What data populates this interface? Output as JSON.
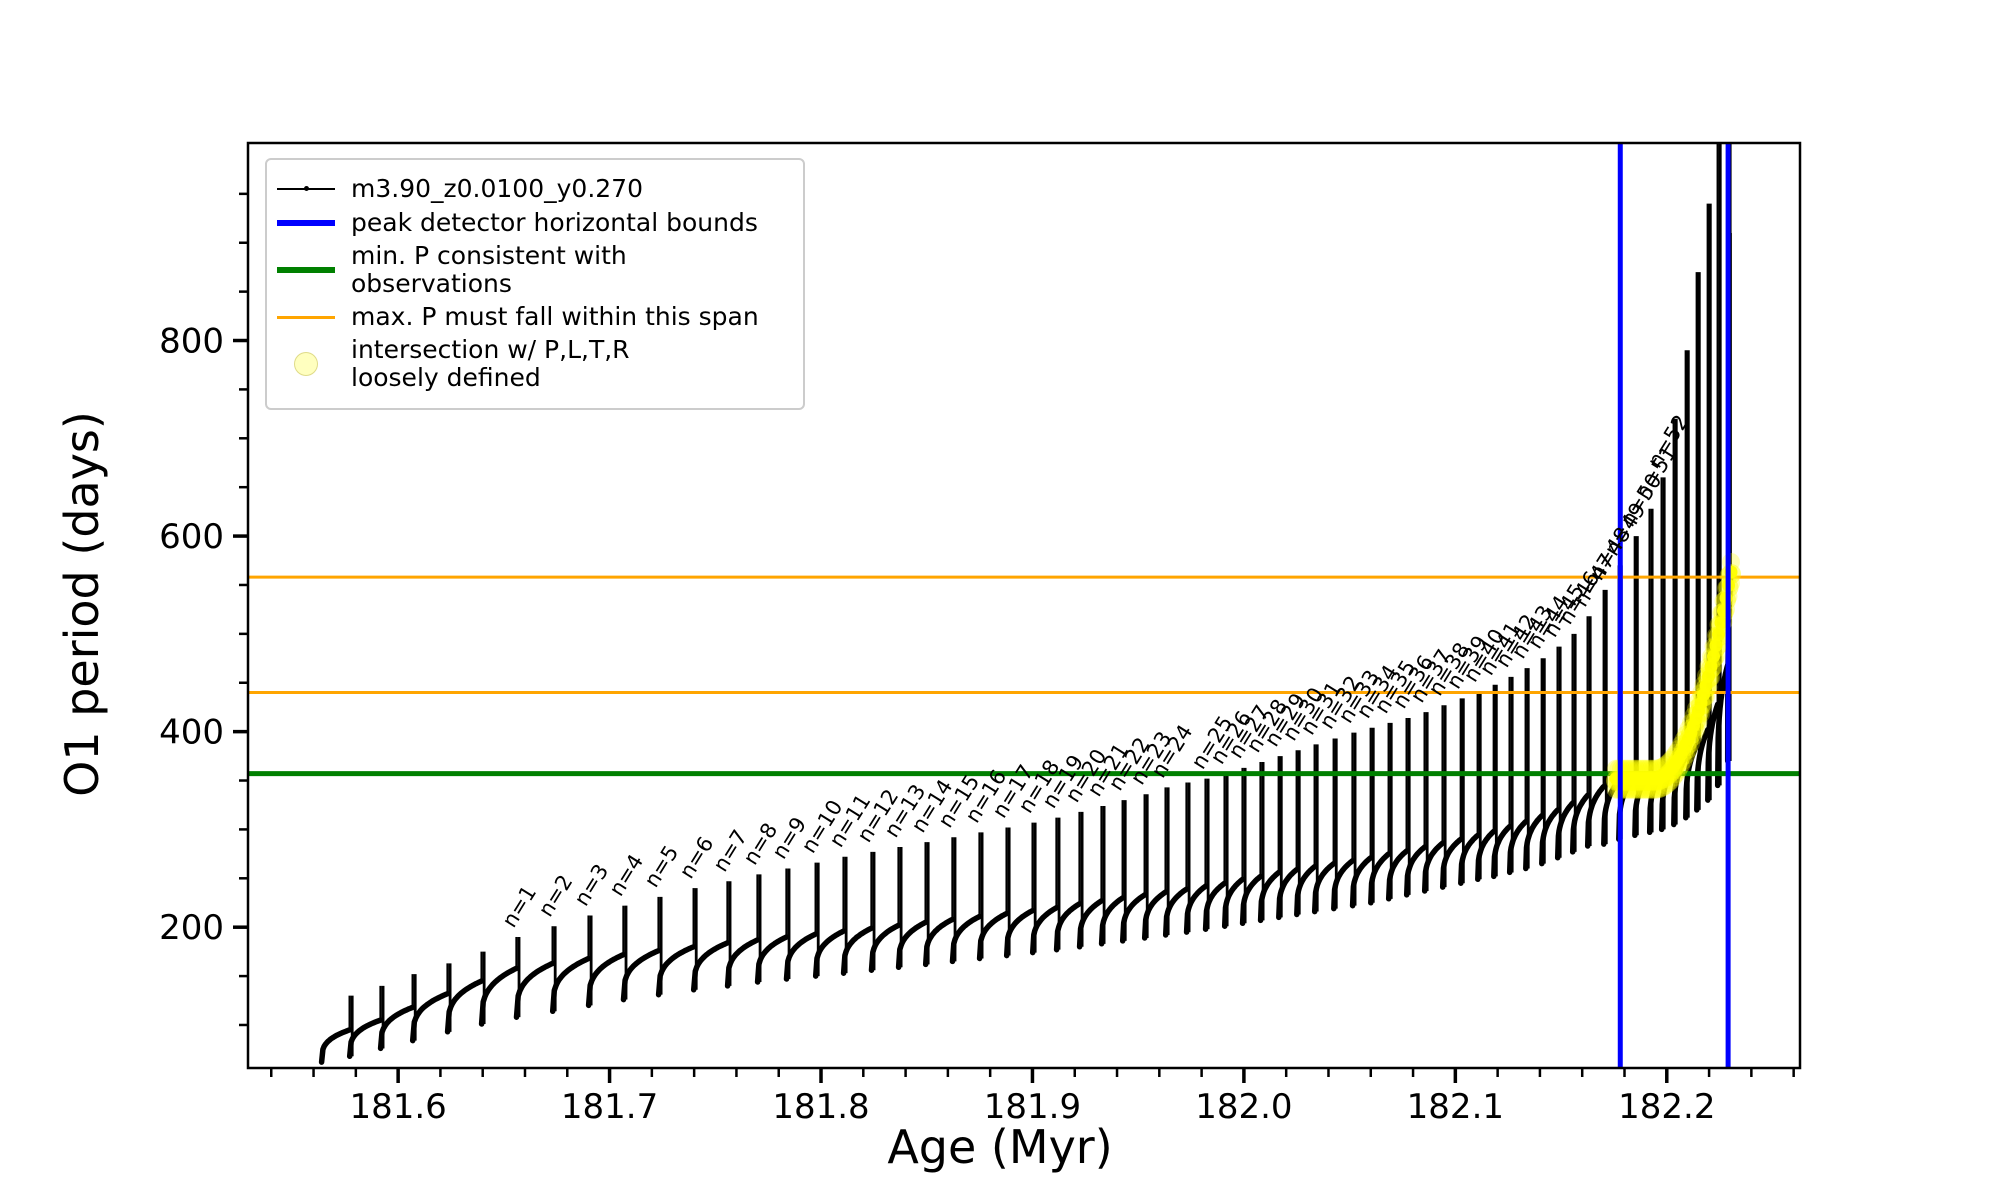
{
  "figure": {
    "xlabel": "Age (Myr)",
    "ylabel": "O1 period (days)",
    "background": "#ffffff",
    "spine_color": "#000000"
  },
  "legend": {
    "entries": [
      {
        "label": "m3.90_z0.0100_y0.270",
        "type": "line-dot",
        "color": "#000000"
      },
      {
        "label": "peak detector horizontal bounds",
        "type": "line",
        "color": "#0000ff"
      },
      {
        "label": "min. P consistent with observations",
        "type": "line",
        "color": "#008000"
      },
      {
        "label": "max. P must fall within this span",
        "type": "line",
        "color": "#ffa500"
      },
      {
        "label": "intersection w/ P,L,T,R\nloosely defined",
        "type": "marker",
        "color": "#ffff00"
      }
    ]
  },
  "chart_data": {
    "type": "line",
    "title": "",
    "xlabel": "Age (Myr)",
    "ylabel": "O1 period (days)",
    "xlim": [
      181.529,
      182.263
    ],
    "ylim": [
      56,
      1002
    ],
    "x_ticks": {
      "major": [
        181.6,
        181.7,
        181.8,
        181.9,
        182.0,
        182.1,
        182.2
      ],
      "labels": [
        "181.6",
        "181.7",
        "181.8",
        "181.9",
        "182.0",
        "182.1",
        "182.2"
      ],
      "minor_step": 0.02
    },
    "y_ticks": {
      "major": [
        200,
        400,
        600,
        800
      ],
      "labels": [
        "200",
        "400",
        "600",
        "800"
      ],
      "minor_step": 50
    },
    "grid": false,
    "legend_position": "upper left",
    "hlines": [
      {
        "y": 357,
        "color": "#008000",
        "width": 5,
        "name": "min. P consistent with observations"
      },
      {
        "y": 440,
        "color": "#ffa500",
        "width": 3,
        "name": "max. P span lower"
      },
      {
        "y": 558,
        "color": "#ffa500",
        "width": 3,
        "name": "max. P span upper"
      }
    ],
    "vlines": [
      {
        "x": 182.178,
        "color": "#0000ff",
        "width": 5,
        "name": "peak detector left bound"
      },
      {
        "x": 182.229,
        "color": "#0000ff",
        "width": 5,
        "name": "peak detector right bound"
      }
    ],
    "yellow_intersection": {
      "color": "#ffff00",
      "x_start": 182.176,
      "x_end": 182.23,
      "y_start": 357,
      "y_end": 575
    },
    "series_name": "m3.90_z0.0100_y0.270",
    "teeth": {
      "comment": "thermal-pulse sawtooth: each tooth rises from min to base then spikes to spike and drops to next min",
      "ages": [
        181.5638,
        181.5771,
        181.5917,
        181.6069,
        181.6234,
        181.6395,
        181.656,
        181.6731,
        181.6901,
        181.7066,
        181.7232,
        181.7398,
        181.7558,
        181.77,
        181.7837,
        181.7975,
        181.8107,
        181.8239,
        181.8367,
        181.8495,
        181.8622,
        181.875,
        181.8878,
        181.9001,
        181.9114,
        181.9223,
        181.9327,
        181.9427,
        181.9531,
        181.963,
        181.9729,
        181.9819,
        181.9909,
        181.9994,
        182.0079,
        182.0165,
        182.025,
        182.0335,
        182.0425,
        182.0514,
        182.06,
        182.0685,
        182.077,
        182.0855,
        182.094,
        182.1026,
        182.1106,
        182.1182,
        182.1257,
        182.1333,
        182.1409,
        182.1484,
        182.1555,
        182.1626,
        182.1702,
        182.1773,
        182.1849,
        182.1919,
        182.1976,
        182.2033,
        182.209,
        182.2142,
        182.2194,
        182.2241,
        182.2288
      ],
      "spike": [
        130,
        140,
        152,
        163,
        175,
        190,
        201,
        212,
        222,
        231,
        240,
        247,
        254,
        260,
        266,
        272,
        277,
        282,
        287,
        292,
        297,
        302,
        307,
        312,
        318,
        324,
        330,
        336,
        343,
        348,
        352,
        357,
        363,
        369,
        375,
        381,
        387,
        393,
        399,
        404,
        409,
        414,
        420,
        427,
        434,
        441,
        448,
        456,
        465,
        475,
        487,
        500,
        518,
        545,
        570,
        600,
        628,
        660,
        720,
        790,
        870,
        940,
        1600,
        1600,
        910
      ],
      "base": [
        95,
        105,
        118,
        132,
        145,
        158,
        163,
        168,
        172,
        176,
        180,
        184,
        187,
        190,
        193,
        196,
        199,
        202,
        205,
        208,
        211,
        214,
        217,
        220,
        224,
        227,
        230,
        233,
        236,
        239,
        242,
        245,
        249,
        252,
        256,
        259,
        262,
        265,
        268,
        271,
        275,
        278,
        282,
        286,
        290,
        294,
        298,
        303,
        308,
        314,
        320,
        327,
        335,
        344,
        350,
        354,
        357,
        359,
        365,
        374,
        386,
        402,
        428,
        468,
        560
      ],
      "min": [
        62,
        68,
        76,
        84,
        93,
        101,
        108,
        114,
        120,
        126,
        131,
        136,
        140,
        144,
        147,
        150,
        153,
        156,
        159,
        162,
        165,
        168,
        171,
        174,
        177,
        180,
        183,
        186,
        189,
        192,
        195,
        198,
        201,
        204,
        207,
        210,
        213,
        216,
        219,
        222,
        225,
        229,
        233,
        237,
        241,
        245,
        249,
        252,
        256,
        260,
        265,
        271,
        277,
        283,
        285,
        290,
        294,
        297,
        300,
        305,
        312,
        320,
        330,
        345,
        370
      ],
      "labels": [
        "",
        "",
        "",
        "",
        "",
        "n=1",
        "n=2",
        "n=3",
        "n=4",
        "n=5",
        "n=6",
        "n=7",
        "n=8",
        "n=9",
        "n=10",
        "n=11",
        "n=12",
        "n=13",
        "n=14",
        "n=15",
        "n=16",
        "n=17",
        "n=18",
        "n=19",
        "n=20",
        "n=21",
        "n=22",
        "n=23",
        "n=24",
        "",
        "n=25",
        "n=26",
        "n=27",
        "n=28",
        "n=29",
        "n=30",
        "n=31",
        "n=32",
        "n=33",
        "n=34",
        "n=35",
        "n=36",
        "n=37",
        "n=38",
        "n=39",
        "n=40",
        "n=41",
        "n=42",
        "n=43",
        "n=44",
        "n=45",
        "n=46",
        "n=47",
        "n=48",
        "n=49",
        "n=50",
        "n=51",
        "n=52",
        "",
        "",
        "",
        "",
        "",
        "",
        ""
      ]
    }
  }
}
